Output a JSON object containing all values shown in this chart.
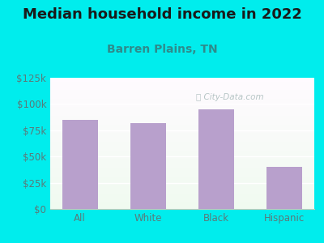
{
  "title": "Median household income in 2022",
  "subtitle": "Barren Plains, TN",
  "categories": [
    "All",
    "White",
    "Black",
    "Hispanic"
  ],
  "values": [
    85000,
    82000,
    95000,
    40000
  ],
  "bar_color": "#B8A0CC",
  "background_color": "#00EDED",
  "title_color": "#1a1a1a",
  "subtitle_color": "#2E8B8B",
  "tick_color": "#5a7a7a",
  "ylim": [
    0,
    125000
  ],
  "yticks": [
    0,
    25000,
    50000,
    75000,
    100000,
    125000
  ],
  "ytick_labels": [
    "$0",
    "$25k",
    "$50k",
    "$75k",
    "$100k",
    "$125k"
  ],
  "watermark": "City-Data.com",
  "watermark_color": "#AABCBC",
  "title_fontsize": 13,
  "subtitle_fontsize": 10,
  "tick_fontsize": 8.5
}
